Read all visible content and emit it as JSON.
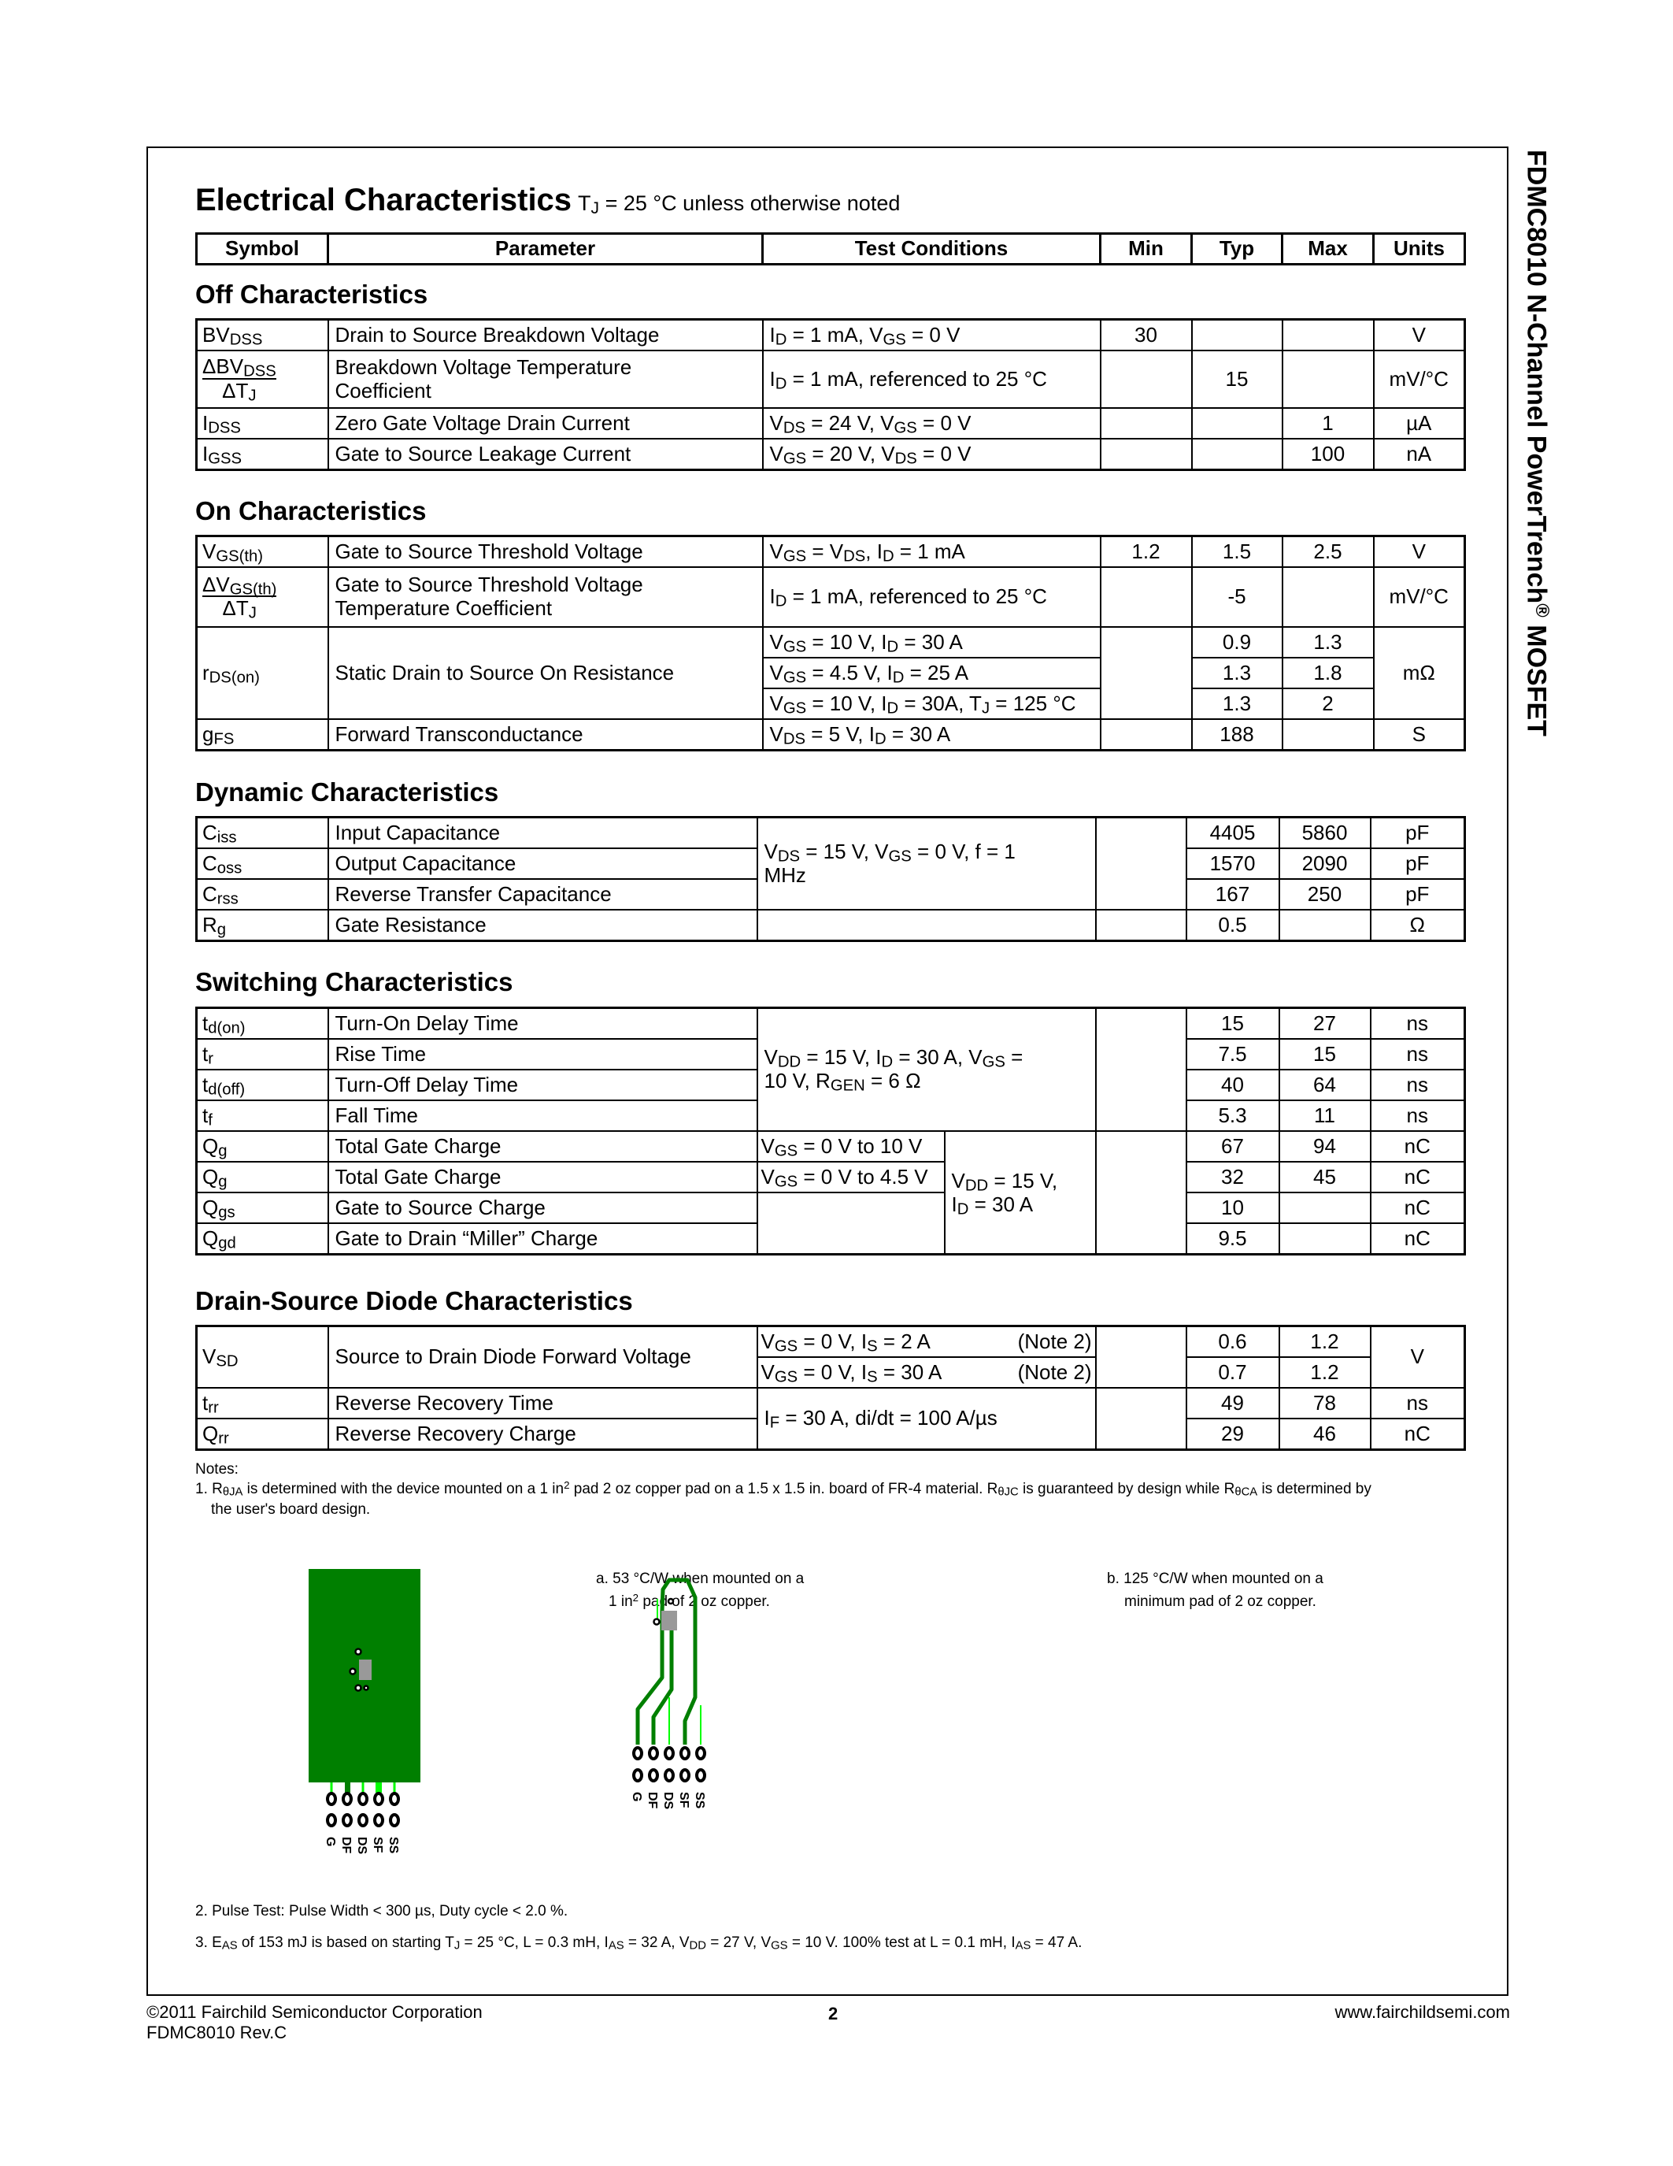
{
  "side_title": "FDMC8010 N-Channel PowerTrench^{®} MOSFET",
  "header": {
    "title": "Electrical Characteristics",
    "condition": "T_{J} = 25 °C unless otherwise noted"
  },
  "columns": [
    "Symbol",
    "Parameter",
    "Test Conditions",
    "Min",
    "Typ",
    "Max",
    "Units"
  ],
  "off": {
    "heading": "Off Characteristics",
    "rows": [
      {
        "symbol": "BV_{DSS}",
        "parameter": "Drain to Source Breakdown Voltage",
        "conditions": "I_{D} = 1  mA, V_{GS} = 0  V",
        "min": "30",
        "typ": "",
        "max": "",
        "units": "V"
      },
      {
        "symbol_num": "ΔBV_{DSS}",
        "symbol_den": "ΔT_{J}",
        "parameter": "Breakdown Voltage Temperature Coefficient",
        "conditions": "I_{D} = 1  mA, referenced to 25 °C",
        "min": "",
        "typ": "15",
        "max": "",
        "units": "mV/°C"
      },
      {
        "symbol": "I_{DSS}",
        "parameter": "Zero Gate Voltage Drain Current",
        "conditions": "V_{DS} = 24  V, V_{GS} = 0  V",
        "min": "",
        "typ": "",
        "max": "1",
        "units": "µA"
      },
      {
        "symbol": "I_{GSS}",
        "parameter": "Gate to Source Leakage Current",
        "conditions": "V_{GS} = 20  V, V_{DS} = 0  V",
        "min": "",
        "typ": "",
        "max": "100",
        "units": "nA"
      }
    ]
  },
  "on": {
    "heading": "On Characteristics",
    "rows": [
      {
        "symbol": "V_{GS(th)}",
        "parameter": "Gate to Source Threshold Voltage",
        "conditions": "V_{GS} = V_{DS}, I_{D} = 1  mA",
        "min": "1.2",
        "typ": "1.5",
        "max": "2.5",
        "units": "V"
      },
      {
        "symbol_num": "ΔV_{GS(th)}",
        "symbol_den": "ΔT_{J}",
        "parameter": "Gate to Source Threshold Voltage Temperature Coefficient",
        "conditions": "I_{D} = 1  mA, referenced to 25 °C",
        "min": "",
        "typ": "-5",
        "max": "",
        "units": "mV/°C"
      },
      {
        "symbol": "r_{DS(on)}",
        "parameter": "Static Drain to Source On Resistance",
        "units": "mΩ",
        "sub": [
          {
            "conditions": "V_{GS} = 10  V, I_{D} = 30  A",
            "typ": "0.9",
            "max": "1.3"
          },
          {
            "conditions": "V_{GS} = 4.5  V, I_{D} = 25  A",
            "typ": "1.3",
            "max": "1.8"
          },
          {
            "conditions": "V_{GS} = 10  V, I_{D} = 30A, T_{J} = 125 °C",
            "typ": "1.3",
            "max": "2"
          }
        ]
      },
      {
        "symbol": "g_{FS}",
        "parameter": "Forward Transconductance",
        "conditions": "V_{DS} = 5  V, I_{D} = 30  A",
        "min": "",
        "typ": "188",
        "max": "",
        "units": "S"
      }
    ]
  },
  "dynamic": {
    "heading": "Dynamic Characteristics",
    "shared_conditions": "V_{DS} = 15  V, V_{GS} = 0  V, f = 1  MHz",
    "rows": [
      {
        "symbol": "C_{iss}",
        "parameter": "Input Capacitance",
        "typ": "4405",
        "max": "5860",
        "units": "pF"
      },
      {
        "symbol": "C_{oss}",
        "parameter": "Output Capacitance",
        "typ": "1570",
        "max": "2090",
        "units": "pF"
      },
      {
        "symbol": "C_{rss}",
        "parameter": "Reverse Transfer Capacitance",
        "typ": "167",
        "max": "250",
        "units": "pF"
      },
      {
        "symbol": "R_{g}",
        "parameter": "Gate Resistance",
        "typ": "0.5",
        "max": "",
        "units": "Ω"
      }
    ]
  },
  "switching": {
    "heading": "Switching Characteristics",
    "shared_conditions_a": "V_{DD} = 15  V, I_{D} = 30  A, V_{GS} = 10  V, R_{GEN} = 6  Ω",
    "shared_conditions_b": "V_{DD} = 15  V, I_{D} = 30  A",
    "rows": [
      {
        "symbol": "t_{d(on)}",
        "parameter": "Turn-On Delay Time",
        "typ": "15",
        "max": "27",
        "units": "ns"
      },
      {
        "symbol": "t_{r}",
        "parameter": "Rise Time",
        "typ": "7.5",
        "max": "15",
        "units": "ns"
      },
      {
        "symbol": "t_{d(off)}",
        "parameter": "Turn-Off Delay Time",
        "typ": "40",
        "max": "64",
        "units": "ns"
      },
      {
        "symbol": "t_{f}",
        "parameter": "Fall Time",
        "typ": "5.3",
        "max": "11",
        "units": "ns"
      },
      {
        "symbol": "Q_{g}",
        "parameter": "Total Gate Charge",
        "conditions": "V_{GS} = 0  V to 10  V",
        "typ": "67",
        "max": "94",
        "units": "nC"
      },
      {
        "symbol": "Q_{g}",
        "parameter": "Total Gate Charge",
        "conditions": "V_{GS} = 0  V to 4.5  V",
        "typ": "32",
        "max": "45",
        "units": "nC"
      },
      {
        "symbol": "Q_{gs}",
        "parameter": "Gate to Source Charge",
        "typ": "10",
        "max": "",
        "units": "nC"
      },
      {
        "symbol": "Q_{gd}",
        "parameter": "Gate to Drain “Miller” Charge",
        "typ": "9.5",
        "max": "",
        "units": "nC"
      }
    ]
  },
  "diode": {
    "heading": "Drain-Source Diode Characteristics",
    "vsd": {
      "symbol": "V_{SD}",
      "parameter": "Source to Drain Diode Forward Voltage",
      "units": "V",
      "sub": [
        {
          "conditions": "V_{GS} = 0  V, I_{S} = 2  A",
          "note": "(Note 2)",
          "typ": "0.6",
          "max": "1.2"
        },
        {
          "conditions": "V_{GS} = 0  V, I_{S} = 30  A",
          "note": "(Note 2)",
          "typ": "0.7",
          "max": "1.2"
        }
      ]
    },
    "shared_conditions": "I_{F} = 30  A, di/dt = 100  A/µs",
    "rows": [
      {
        "symbol": "t_{rr}",
        "parameter": "Reverse Recovery Time",
        "typ": "49",
        "max": "78",
        "units": "ns"
      },
      {
        "symbol": "Q_{rr}",
        "parameter": "Reverse Recovery Charge",
        "typ": "29",
        "max": "46",
        "units": "nC"
      }
    ]
  },
  "notes": {
    "label": "Notes:",
    "note1_line1": "1. R_{θJA} is determined with the device mounted on a 1 in^{2} pad 2 oz copper pad on a 1.5 x 1.5 in. board of FR-4 material. R_{θJC} is guaranteed by design while R_{θCA} is determined by",
    "note1_line2": "the user's board design.",
    "figure_a_line1": "a. 53 °C/W when mounted  on a",
    "figure_a_line2": "1 in^{2} pad of  2 oz  copper.",
    "figure_b_line1": "b. 125 °C/W when mounted on  a",
    "figure_b_line2": "minimum pad of 2 oz copper.",
    "pin_labels": [
      "G",
      "DF",
      "DS",
      "SF",
      "SS"
    ],
    "note2": "2. Pulse Test: Pulse Width < 300 µs, Duty cycle < 2.0 %.",
    "note3": "3. E_{AS} of 153 mJ is based on starting T_{J} = 25 °C, L = 0.3 mH, I_{AS} = 32 A, V_{DD} = 27 V, V_{GS} = 10 V.  100% test at L = 0.1 mH, I_{AS} = 47 A."
  },
  "colors": {
    "copper": "#007f00",
    "trace_thin": "#00ff00",
    "pad": "#000000",
    "package": "#999999"
  },
  "footer": {
    "copyright": "©2011 Fairchild Semiconductor Corporation",
    "revision": "FDMC8010 Rev.C",
    "page": "2",
    "website": "www.fairchildsemi.com"
  }
}
